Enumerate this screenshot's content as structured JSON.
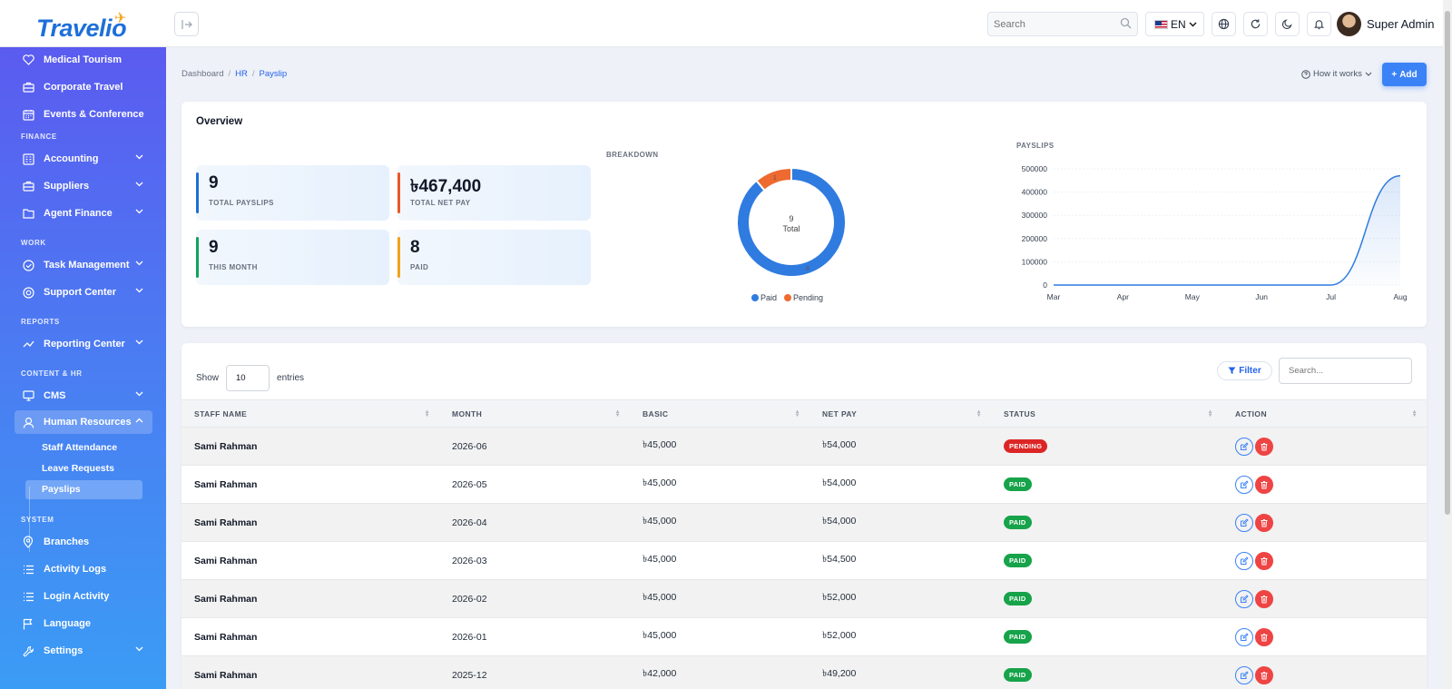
{
  "header": {
    "logo": "Travelio",
    "search_placeholder": "Search",
    "language": "EN",
    "user_name": "Super Admin"
  },
  "sidebar": {
    "items_top": [
      {
        "label": "Medical Tourism",
        "icon": "heart-icon"
      },
      {
        "label": "Corporate Travel",
        "icon": "briefcase-icon"
      },
      {
        "label": "Events & Conference",
        "icon": "calendar-icon"
      }
    ],
    "sections": {
      "finance": "FINANCE",
      "work": "WORK",
      "reports": "REPORTS",
      "content_hr": "CONTENT & HR",
      "system": "SYSTEM"
    },
    "finance_items": [
      {
        "label": "Accounting",
        "icon": "ledger-icon"
      },
      {
        "label": "Suppliers",
        "icon": "briefcase-icon"
      },
      {
        "label": "Agent Finance",
        "icon": "folder-icon"
      }
    ],
    "work_items": [
      {
        "label": "Task Management",
        "icon": "check-circle-icon"
      },
      {
        "label": "Support Center",
        "icon": "lifebuoy-icon"
      }
    ],
    "reports_items": [
      {
        "label": "Reporting Center",
        "icon": "trend-icon"
      }
    ],
    "content_items": [
      {
        "label": "CMS",
        "icon": "monitor-icon"
      },
      {
        "label": "Human Resources",
        "icon": "person-icon"
      }
    ],
    "hr_sub": [
      "Staff Attendance",
      "Leave Requests",
      "Payslips"
    ],
    "system_items": [
      {
        "label": "Branches",
        "icon": "pin-icon"
      },
      {
        "label": "Activity Logs",
        "icon": "list-icon"
      },
      {
        "label": "Login Activity",
        "icon": "list-icon"
      },
      {
        "label": "Language",
        "icon": "flag-icon"
      },
      {
        "label": "Settings",
        "icon": "wrench-icon"
      }
    ]
  },
  "breadcrumb": {
    "home": "Dashboard",
    "section": "HR",
    "current": "Payslip",
    "sep": "/"
  },
  "page_actions": {
    "how": "How it works",
    "add": "Add"
  },
  "overview": {
    "title": "Overview",
    "stats": [
      {
        "value": "9",
        "label": "TOTAL PAYSLIPS",
        "color": "#1e6fd9"
      },
      {
        "value": "৳467,400",
        "label": "TOTAL NET PAY",
        "color": "#e8572a"
      },
      {
        "value": "9",
        "label": "THIS MONTH",
        "color": "#10a35c"
      },
      {
        "value": "8",
        "label": "PAID",
        "color": "#f2a21b"
      }
    ],
    "breakdown_label": "BREAKDOWN",
    "payslips_label": "PAYSLIPS",
    "donut_total": "9",
    "donut_total_label": "Total"
  },
  "chart_data": [
    {
      "type": "pie",
      "title": "BREAKDOWN",
      "categories": [
        "Paid",
        "Pending"
      ],
      "values": [
        8,
        1
      ],
      "colors": [
        "#2f7be0",
        "#ee6a30"
      ],
      "legend": "bottom"
    },
    {
      "type": "area",
      "title": "PAYSLIPS",
      "categories": [
        "Mar",
        "Apr",
        "May",
        "Jun",
        "Jul",
        "Aug"
      ],
      "values": [
        0,
        0,
        0,
        0,
        0,
        470000
      ],
      "ylim": [
        0,
        500000
      ],
      "yticks": [
        0,
        100000,
        200000,
        300000,
        400000,
        500000
      ],
      "color": "#2f7be0"
    }
  ],
  "table": {
    "show_label": "Show",
    "entries_value": "10",
    "entries_label": "entries",
    "filter_label": "Filter",
    "search_placeholder": "Search...",
    "columns": [
      "STAFF NAME",
      "MONTH",
      "BASIC",
      "NET PAY",
      "STATUS",
      "ACTION"
    ],
    "rows": [
      {
        "name": "Sami Rahman",
        "month": "2026-06",
        "basic": "৳45,000",
        "net": "৳54,000",
        "status": "PENDING"
      },
      {
        "name": "Sami Rahman",
        "month": "2026-05",
        "basic": "৳45,000",
        "net": "৳54,000",
        "status": "PAID"
      },
      {
        "name": "Sami Rahman",
        "month": "2026-04",
        "basic": "৳45,000",
        "net": "৳54,000",
        "status": "PAID"
      },
      {
        "name": "Sami Rahman",
        "month": "2026-03",
        "basic": "৳45,000",
        "net": "৳54,500",
        "status": "PAID"
      },
      {
        "name": "Sami Rahman",
        "month": "2026-02",
        "basic": "৳45,000",
        "net": "৳52,000",
        "status": "PAID"
      },
      {
        "name": "Sami Rahman",
        "month": "2026-01",
        "basic": "৳45,000",
        "net": "৳52,000",
        "status": "PAID"
      },
      {
        "name": "Sami Rahman",
        "month": "2025-12",
        "basic": "৳42,000",
        "net": "৳49,200",
        "status": "PAID"
      }
    ]
  }
}
